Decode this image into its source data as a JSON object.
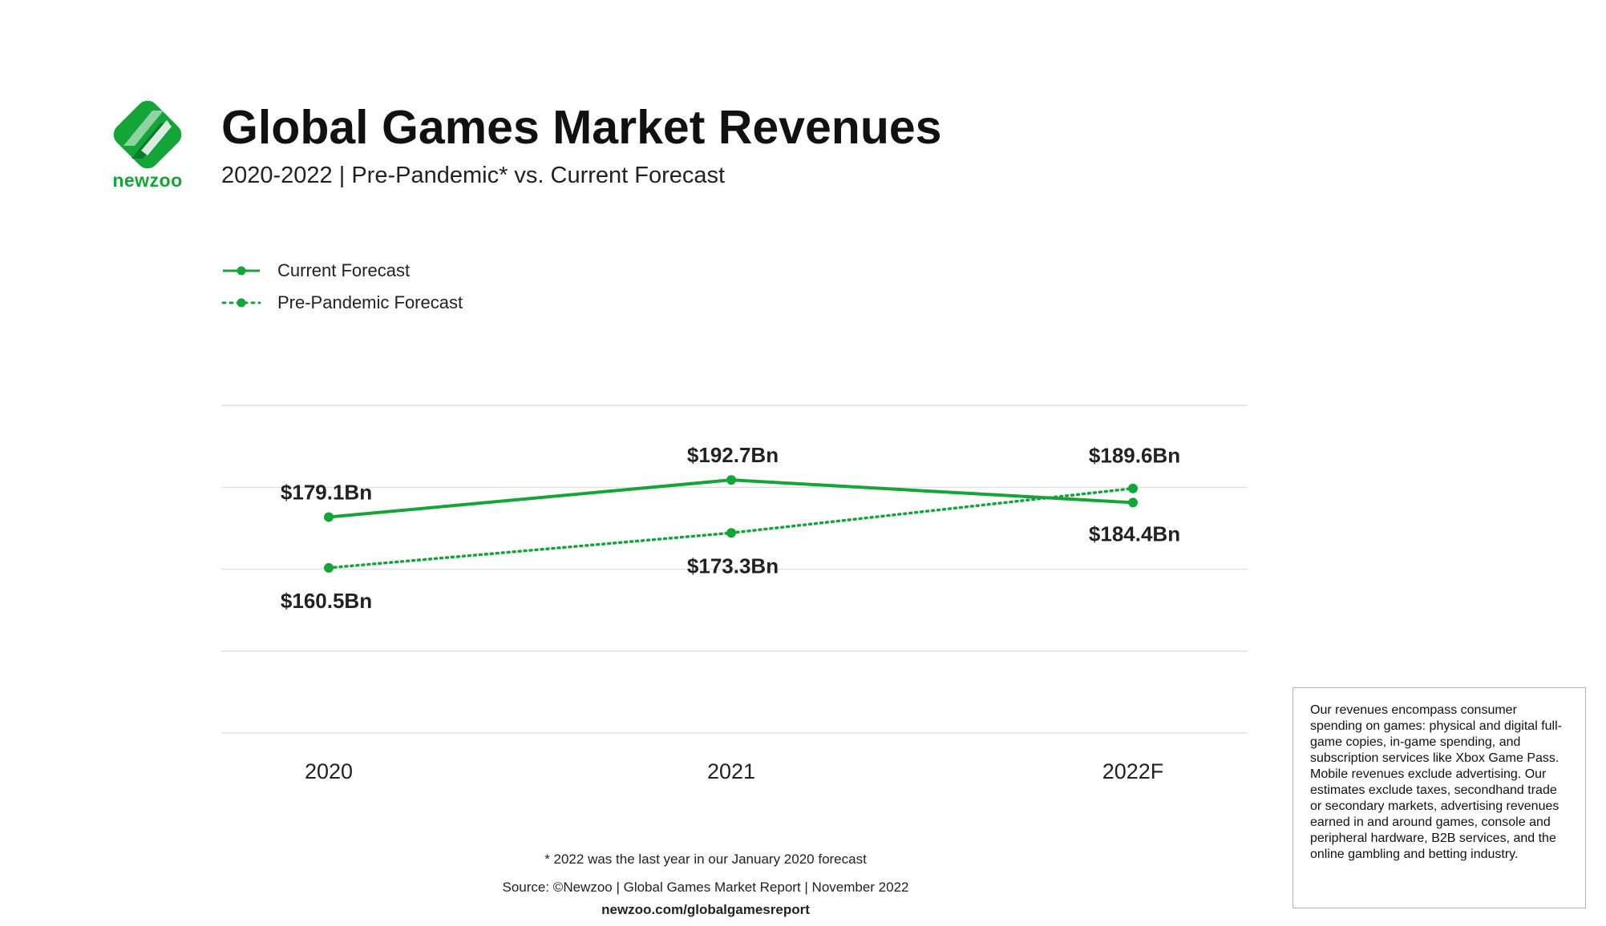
{
  "brand": {
    "name": "newzoo",
    "color": "#13a538"
  },
  "title": "Global Games Market Revenues",
  "subtitle": "2020-2022 | Pre-Pandemic* vs. Current Forecast",
  "chart_data": {
    "type": "line",
    "x": [
      "2020",
      "2021",
      "2022F"
    ],
    "ylim": [
      100,
      240
    ],
    "grid": true,
    "legend_position": "top-left",
    "series": [
      {
        "name": "Current Forecast",
        "values": [
          179.1,
          192.7,
          184.4
        ],
        "labels": [
          "$179.1Bn",
          "$192.7Bn",
          "$184.4Bn"
        ],
        "style": "solid",
        "color": "#13a538"
      },
      {
        "name": "Pre-Pandemic Forecast",
        "values": [
          160.5,
          173.3,
          189.6
        ],
        "labels": [
          "$160.5Bn",
          "$173.3Bn",
          "$189.6Bn"
        ],
        "style": "dotted",
        "color": "#13a538"
      }
    ]
  },
  "note": "Our revenues encompass consumer spending on games: physical and digital full-game copies, in-game spending, and subscription services like Xbox Game Pass. Mobile revenues exclude advertising. Our estimates exclude taxes, secondhand trade or secondary markets, advertising revenues earned in and around games, console and peripheral hardware, B2B services, and the online gambling and betting industry.",
  "footnotes": {
    "asterisk": "* 2022 was the last year in our January 2020 forecast",
    "source": "Source: ©Newzoo | Global Games Market Report | November 2022",
    "url": "newzoo.com/globalgamesreport"
  }
}
